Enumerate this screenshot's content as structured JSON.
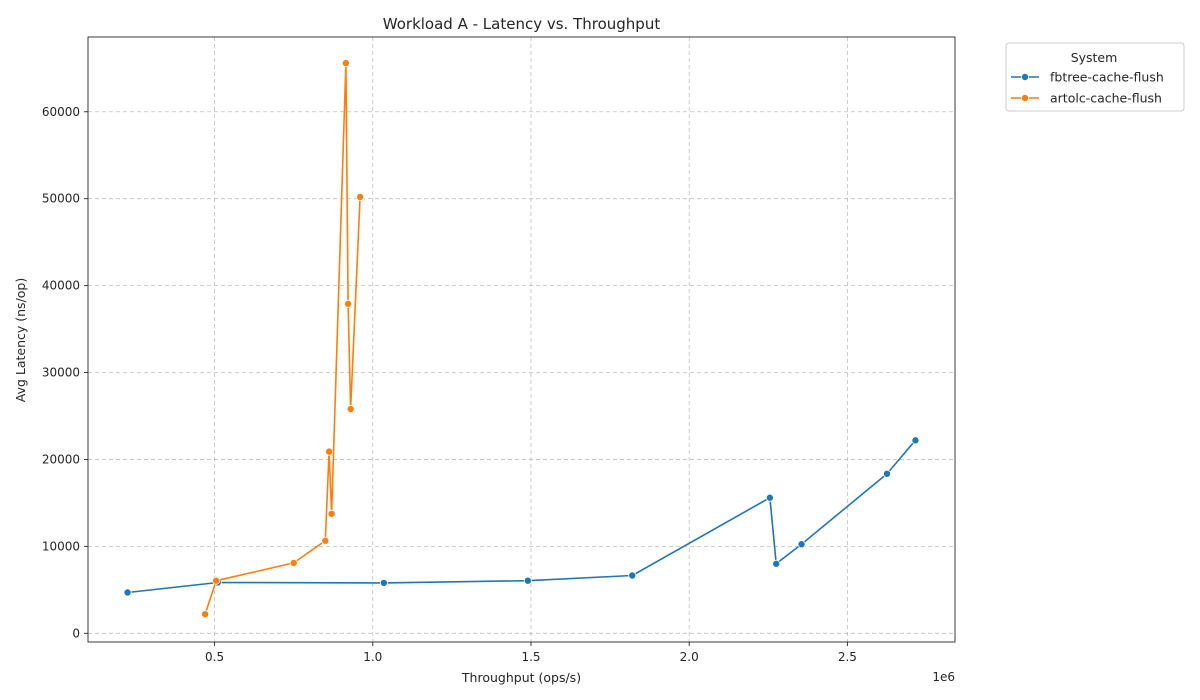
{
  "chart_data": {
    "type": "line",
    "title": "Workload A - Latency vs. Throughput",
    "xlabel": "Throughput (ops/s)",
    "ylabel": "Avg Latency (ns/op)",
    "x_offset_label": "1e6",
    "xlim": [
      100000,
      2840000
    ],
    "ylim": [
      -1000,
      68600
    ],
    "xticks": [
      500000,
      1000000,
      1500000,
      2000000,
      2500000
    ],
    "xtick_labels": [
      "0.5",
      "1.0",
      "1.5",
      "2.0",
      "2.5"
    ],
    "yticks": [
      0,
      10000,
      20000,
      30000,
      40000,
      50000,
      60000
    ],
    "ytick_labels": [
      "0",
      "10000",
      "20000",
      "30000",
      "40000",
      "50000",
      "60000"
    ],
    "grid": true,
    "legend": {
      "title": "System",
      "placement": "outside-top-right"
    },
    "series": [
      {
        "name": "fbtree-cache-flush",
        "color": "#1f77b4",
        "points": [
          [
            225000,
            4700
          ],
          [
            510000,
            5850
          ],
          [
            1035000,
            5800
          ],
          [
            1490000,
            6050
          ],
          [
            1820000,
            6650
          ],
          [
            2255000,
            15600
          ],
          [
            2275000,
            8000
          ],
          [
            2355000,
            10250
          ],
          [
            2625000,
            18350
          ],
          [
            2715000,
            22200
          ]
        ]
      },
      {
        "name": "artolc-cache-flush",
        "color": "#ff7f0e",
        "points": [
          [
            470000,
            2200
          ],
          [
            505000,
            6050
          ],
          [
            750000,
            8100
          ],
          [
            850000,
            10650
          ],
          [
            862000,
            20900
          ],
          [
            870000,
            13750
          ],
          [
            915000,
            65600
          ],
          [
            922000,
            37900
          ],
          [
            930000,
            25800
          ],
          [
            960000,
            50200
          ]
        ]
      }
    ]
  }
}
